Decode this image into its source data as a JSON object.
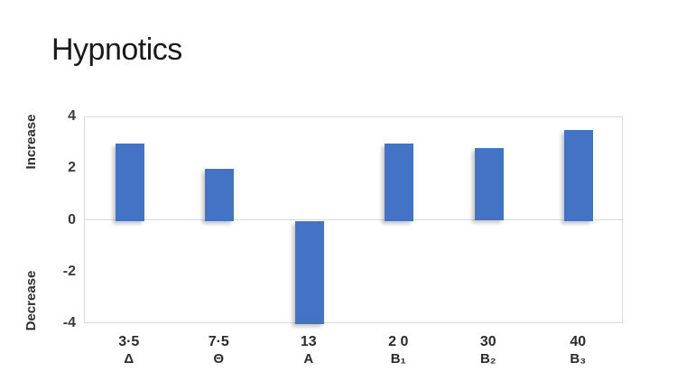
{
  "title": "Hypnotics",
  "chart_data": {
    "type": "bar",
    "title": "Hypnotics",
    "categories": [
      "3·5",
      "7·5",
      "13",
      "2 0",
      "30",
      "40"
    ],
    "category_symbols": [
      "Δ",
      "Θ",
      "A",
      "B₁",
      "B₂",
      "B₃"
    ],
    "values": [
      3.0,
      2.0,
      -4.0,
      3.0,
      2.8,
      3.5
    ],
    "ylim": [
      -4,
      4
    ],
    "yticks": [
      4,
      2,
      0,
      -2,
      -4
    ],
    "y_axis_annotations": {
      "positive": "Increase",
      "negative": "Decrease"
    },
    "legend": "none",
    "grid": "zero-line-only",
    "bar_color": "#4472C4",
    "axis_border_color": "#D9D9D9"
  }
}
